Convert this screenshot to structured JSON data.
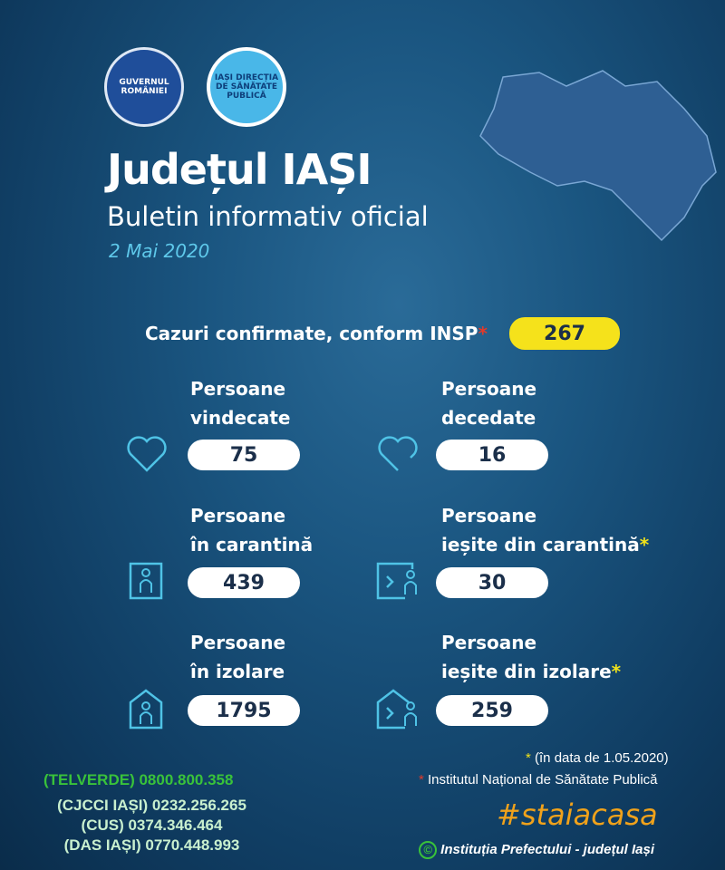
{
  "logos": {
    "gov": "GUVERNUL ROMÂNIEI",
    "dsp": "IAȘI DIRECȚIA DE SĂNĂTATE PUBLICĂ"
  },
  "header": {
    "title": "Județul IAȘI",
    "subtitle": "Buletin informativ oficial",
    "date": "2 Mai 2020"
  },
  "confirmed": {
    "label": "Cazuri confirmate, conform INSP",
    "mark": "*",
    "value": "267"
  },
  "stats": [
    {
      "line1": "Persoane",
      "line2": "vindecate",
      "mark": "",
      "value": "75",
      "icon": "heart-icon"
    },
    {
      "line1": "Persoane",
      "line2": "decedate",
      "mark": "",
      "value": "16",
      "icon": "broken-heart-icon"
    },
    {
      "line1": "Persoane",
      "line2": "în carantină",
      "mark": "",
      "value": "439",
      "icon": "person-in-box-icon"
    },
    {
      "line1": "Persoane",
      "line2": "ieșite din carantină",
      "mark": "*",
      "value": "30",
      "icon": "person-exit-box-icon"
    },
    {
      "line1": "Persoane",
      "line2": "în izolare",
      "mark": "",
      "value": "1795",
      "icon": "person-in-house-icon"
    },
    {
      "line1": "Persoane",
      "line2": "ieșite din izolare",
      "mark": "*",
      "value": "259",
      "icon": "person-exit-house-icon"
    }
  ],
  "notes": {
    "note1_mark": "*",
    "note1": "(în data de 1.05.2020)",
    "note2_mark": "*",
    "note2": "Institutul Național de Sănătate Publică"
  },
  "contacts": {
    "telverde": "(TELVERDE) 0800.800.358",
    "cjcci": "(CJCCI IAȘI) 0232.256.265",
    "cus": "(CUS) 0374.346.464",
    "das": "(DAS IAȘI) 0770.448.993"
  },
  "hashtag": "#staiacasa",
  "credit": {
    "symbol": "©",
    "text": "Instituția Prefectului - județul Iași"
  },
  "colors": {
    "accent_yellow": "#f5e21b",
    "cyan": "#5ec8ea",
    "green": "#39c23a",
    "orange": "#f0a21b",
    "red_asterisk": "#e23a2a"
  }
}
